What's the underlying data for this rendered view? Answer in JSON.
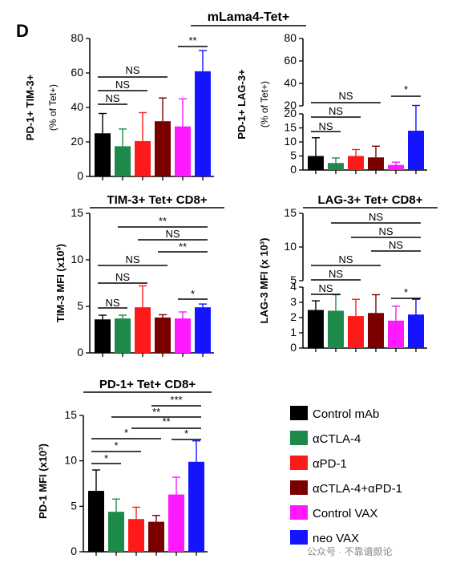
{
  "panel_letter": "D",
  "colors": [
    "#000000",
    "#1e8a4a",
    "#ff1a1a",
    "#7a0000",
    "#ff19ff",
    "#1414ff"
  ],
  "legend": [
    "Control mAb",
    "αCTLA-4",
    "αPD-1",
    "αCTLA-4+αPD-1",
    "Control VAX",
    "neo VAX"
  ],
  "group_title": "mLama4-Tet+",
  "watermark": "公众号 · 不靠谱颇论",
  "chart_data": [
    {
      "id": "pd1-tim3",
      "type": "bar",
      "title": "",
      "ylabel": "PD-1+ TIM-3+",
      "ylabel2": "(% of Tet+)",
      "categories": [
        "Control mAb",
        "αCTLA-4",
        "αPD-1",
        "αCTLA-4+αPD-1",
        "Control VAX",
        "neo VAX"
      ],
      "values": [
        25,
        17.5,
        20.5,
        32,
        29,
        61
      ],
      "errors": [
        11.5,
        10,
        16.5,
        13.5,
        16,
        12
      ],
      "ylim": [
        0,
        80
      ],
      "yticks": [
        "0",
        "20",
        "40",
        "60",
        "80"
      ],
      "comparisons": [
        {
          "from": 0,
          "to": 1,
          "label": "NS"
        },
        {
          "from": 0,
          "to": 2,
          "label": "NS"
        },
        {
          "from": 0,
          "to": 3,
          "label": "NS"
        },
        {
          "from": 4,
          "to": 5,
          "label": "**"
        }
      ]
    },
    {
      "id": "pd1-lag3",
      "type": "bar",
      "title": "",
      "ylabel": "PD-1+ LAG-3+",
      "ylabel2": "(% of Tet+)",
      "categories": [
        "Control mAb",
        "αCTLA-4",
        "αPD-1",
        "αCTLA-4+αPD-1",
        "Control VAX",
        "neo VAX"
      ],
      "values": [
        5,
        2.5,
        5,
        4.5,
        1.8,
        14
      ],
      "errors": [
        6.5,
        1.8,
        2.3,
        4,
        1,
        9
      ],
      "lower_ylim": [
        0,
        20
      ],
      "lower_yticks": [
        "0",
        "5",
        "10",
        "15",
        "20"
      ],
      "upper_yticks": [
        "20",
        "40",
        "60",
        "80"
      ],
      "comparisons": [
        {
          "from": 0,
          "to": 1,
          "label": "NS"
        },
        {
          "from": 0,
          "to": 2,
          "label": "NS"
        },
        {
          "from": 0,
          "to": 3,
          "label": "NS"
        },
        {
          "from": 4,
          "to": 5,
          "label": "*"
        }
      ]
    },
    {
      "id": "tim3-mfi",
      "type": "bar",
      "title": "TIM-3+ Tet+ CD8+",
      "ylabel": "TIM-3 MFI (x10³)",
      "categories": [
        "Control mAb",
        "αCTLA-4",
        "αPD-1",
        "αCTLA-4+αPD-1",
        "Control VAX",
        "neo VAX"
      ],
      "values": [
        3.6,
        3.7,
        4.9,
        3.8,
        3.7,
        4.9
      ],
      "errors": [
        0.45,
        0.35,
        2.3,
        0.3,
        0.7,
        0.35
      ],
      "ylim": [
        0,
        15
      ],
      "yticks": [
        "0",
        "5",
        "10",
        "15"
      ],
      "comparisons": [
        {
          "from": 0,
          "to": 1,
          "label": "NS"
        },
        {
          "from": 0,
          "to": 2,
          "label": "NS"
        },
        {
          "from": 0,
          "to": 3,
          "label": "NS"
        },
        {
          "from": 1,
          "to": 5,
          "label": "**"
        },
        {
          "from": 2,
          "to": 5,
          "label": "NS"
        },
        {
          "from": 3,
          "to": 5,
          "label": "**"
        },
        {
          "from": 4,
          "to": 5,
          "label": "*"
        }
      ]
    },
    {
      "id": "lag3-mfi",
      "type": "bar",
      "title": "LAG-3+ Tet+ CD8+",
      "ylabel": "LAG-3 MFI (x 10³)",
      "categories": [
        "Control mAb",
        "αCTLA-4",
        "αPD-1",
        "αCTLA-4+αPD-1",
        "Control VAX",
        "neo VAX"
      ],
      "values": [
        2.5,
        2.45,
        2.1,
        2.3,
        1.8,
        2.2
      ],
      "errors": [
        0.6,
        1.05,
        1.1,
        1.2,
        0.95,
        1.0
      ],
      "lower_ylim": [
        0,
        4
      ],
      "lower_yticks": [
        "0",
        "1",
        "2",
        "3",
        "4"
      ],
      "upper_yticks": [
        "5",
        "10",
        "15"
      ],
      "comparisons": [
        {
          "from": 0,
          "to": 1,
          "label": "NS"
        },
        {
          "from": 0,
          "to": 2,
          "label": "NS"
        },
        {
          "from": 0,
          "to": 3,
          "label": "NS"
        },
        {
          "from": 1,
          "to": 5,
          "label": "NS"
        },
        {
          "from": 2,
          "to": 5,
          "label": "NS"
        },
        {
          "from": 3,
          "to": 5,
          "label": "NS"
        },
        {
          "from": 4,
          "to": 5,
          "label": "*"
        }
      ]
    },
    {
      "id": "pd1-mfi",
      "type": "bar",
      "title": "PD-1+ Tet+ CD8+",
      "ylabel": "PD-1  MFI (x10³)",
      "categories": [
        "Control mAb",
        "αCTLA-4",
        "αPD-1",
        "αCTLA-4+αPD-1",
        "Control VAX",
        "neo VAX"
      ],
      "values": [
        6.7,
        4.4,
        3.6,
        3.3,
        6.3,
        9.9
      ],
      "errors": [
        2.3,
        1.4,
        1.3,
        0.7,
        1.9,
        2.3
      ],
      "ylim": [
        0,
        15
      ],
      "yticks": [
        "0",
        "5",
        "10",
        "15"
      ],
      "comparisons": [
        {
          "from": 0,
          "to": 1,
          "label": "*"
        },
        {
          "from": 0,
          "to": 2,
          "label": "*"
        },
        {
          "from": 0,
          "to": 3,
          "label": "*"
        },
        {
          "from": 1,
          "to": 5,
          "label": "**"
        },
        {
          "from": 2,
          "to": 5,
          "label": "**"
        },
        {
          "from": 3,
          "to": 5,
          "label": "***"
        },
        {
          "from": 4,
          "to": 5,
          "label": "*"
        }
      ]
    }
  ]
}
